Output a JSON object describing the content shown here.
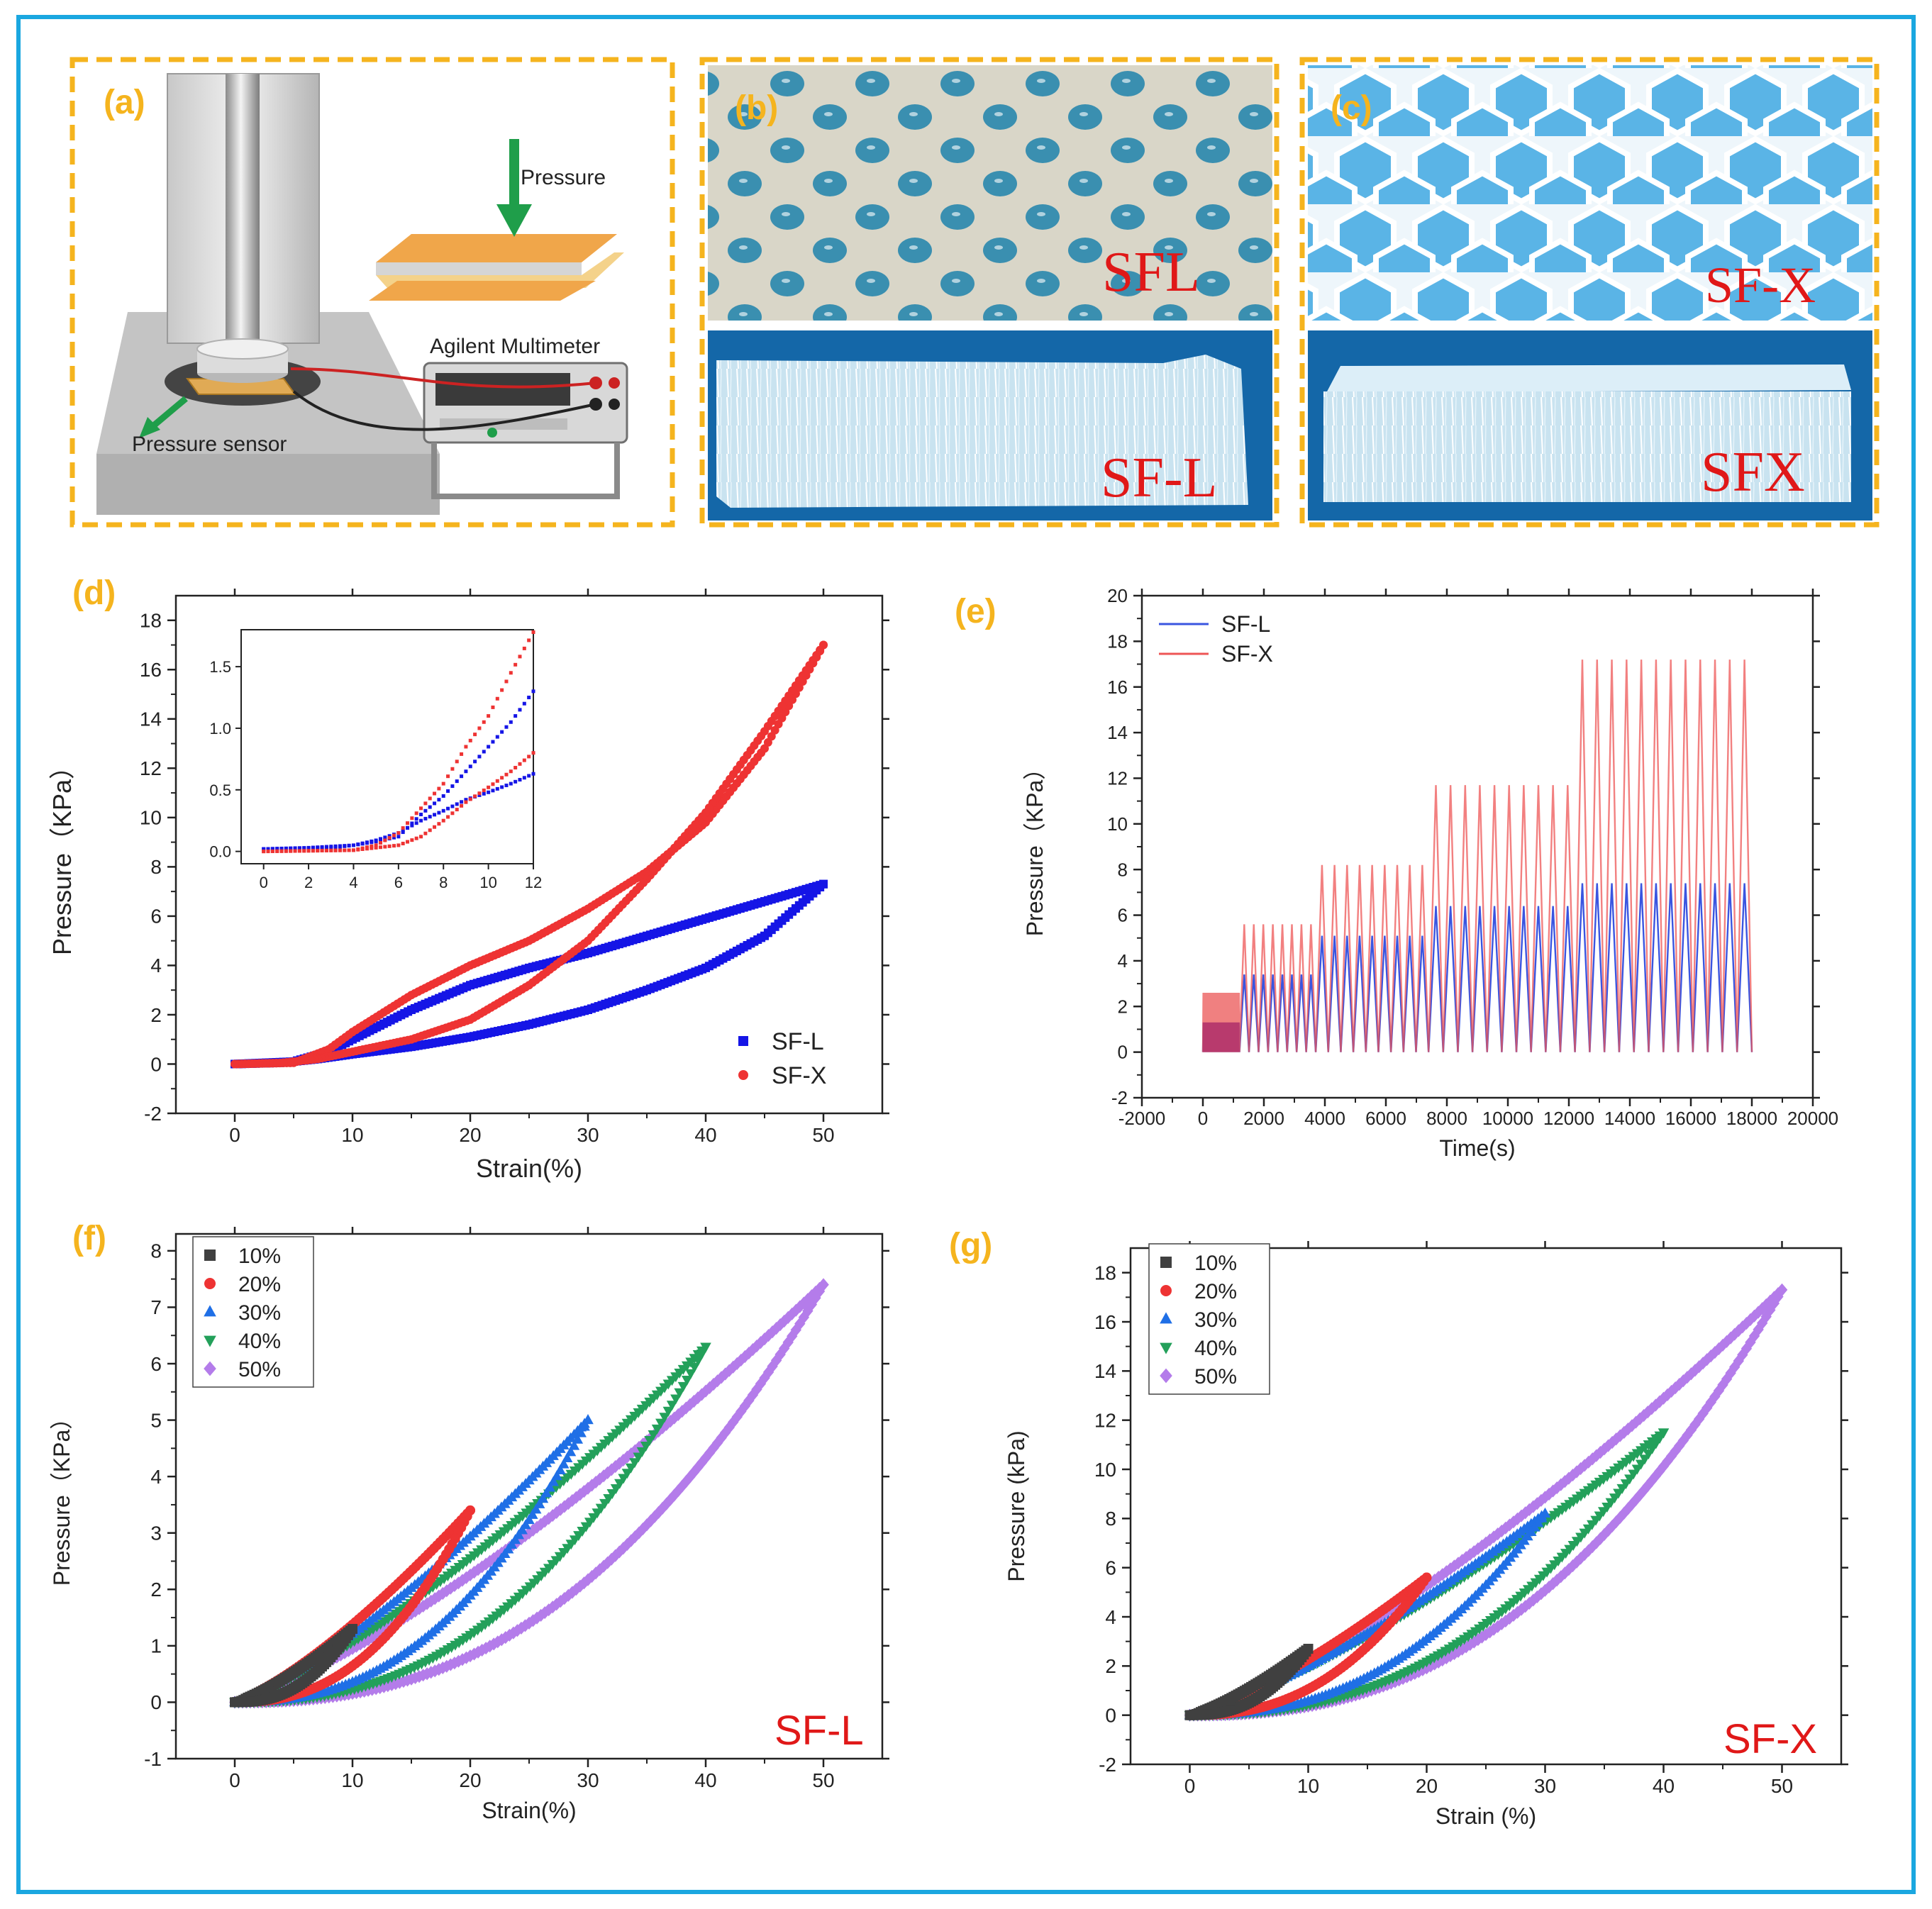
{
  "figure": {
    "colors": {
      "frame": "#1aa7e0",
      "panel_border": "#f5b41e",
      "panel_label": "#f5b41e",
      "sfl_blue": "#1515e6",
      "sfx_red": "#ee3333",
      "sample_text": "#e01818",
      "s10": "#404040",
      "s20": "#ee3333",
      "s30": "#1f6fe6",
      "s40": "#23a05a",
      "s50": "#b47cea"
    },
    "panels": {
      "a": {
        "label": "(a)",
        "pressure_text": "Pressure",
        "multimeter_text": "Agilent Multimeter",
        "sensor_text": "Pressure sensor"
      },
      "b": {
        "label": "(b)",
        "top_text": "SFL",
        "bottom_text": "SF-L"
      },
      "c": {
        "label": "(c)",
        "top_text": "SF-X",
        "bottom_text": "SFX"
      },
      "d": {
        "label": "(d)"
      },
      "e": {
        "label": "(e)"
      },
      "f": {
        "label": "(f)",
        "corner_text": "SF-L"
      },
      "g": {
        "label": "(g)",
        "corner_text": "SF-X"
      }
    }
  },
  "chart_data": [
    {
      "id": "d",
      "type": "scatter",
      "xlabel": "Strain(%)",
      "ylabel": "Pressure（KPa）",
      "xlim": [
        -5,
        55
      ],
      "ylim": [
        -2,
        19
      ],
      "xticks": [
        0,
        10,
        20,
        30,
        40,
        50
      ],
      "yticks": [
        -2,
        0,
        2,
        4,
        6,
        8,
        10,
        12,
        14,
        16,
        18
      ],
      "legend": "bottom-right",
      "series": [
        {
          "name": "SF-L",
          "color": "#1515e6",
          "marker": "square",
          "loading": [
            [
              0,
              0
            ],
            [
              5,
              0.1
            ],
            [
              8,
              0.5
            ],
            [
              10,
              1.0
            ],
            [
              15,
              2.2
            ],
            [
              20,
              3.2
            ],
            [
              25,
              3.9
            ],
            [
              30,
              4.5
            ],
            [
              35,
              5.2
            ],
            [
              40,
              5.9
            ],
            [
              45,
              6.6
            ],
            [
              50,
              7.3
            ]
          ],
          "unloading": [
            [
              50,
              7.3
            ],
            [
              45,
              5.2
            ],
            [
              40,
              3.9
            ],
            [
              35,
              3.0
            ],
            [
              30,
              2.2
            ],
            [
              25,
              1.6
            ],
            [
              20,
              1.1
            ],
            [
              15,
              0.7
            ],
            [
              10,
              0.4
            ],
            [
              7,
              0.2
            ],
            [
              4,
              0.05
            ],
            [
              0,
              0
            ]
          ]
        },
        {
          "name": "SF-X",
          "color": "#ee3333",
          "marker": "circle",
          "loading": [
            [
              0,
              0
            ],
            [
              5,
              0.05
            ],
            [
              8,
              0.6
            ],
            [
              10,
              1.3
            ],
            [
              15,
              2.8
            ],
            [
              20,
              4.0
            ],
            [
              25,
              5.0
            ],
            [
              30,
              6.3
            ],
            [
              35,
              7.8
            ],
            [
              40,
              9.8
            ],
            [
              45,
              12.8
            ],
            [
              50,
              17.0
            ]
          ],
          "unloading": [
            [
              50,
              17.0
            ],
            [
              45,
              13.5
            ],
            [
              40,
              10.2
            ],
            [
              35,
              7.5
            ],
            [
              30,
              5.0
            ],
            [
              25,
              3.2
            ],
            [
              20,
              1.8
            ],
            [
              15,
              1.0
            ],
            [
              10,
              0.5
            ],
            [
              7,
              0.2
            ],
            [
              4,
              0.05
            ],
            [
              0,
              0
            ]
          ]
        }
      ],
      "inset": {
        "xlim": [
          -1,
          12
        ],
        "ylim": [
          -0.1,
          1.8
        ],
        "xticks": [
          0,
          2,
          4,
          6,
          8,
          10,
          12
        ],
        "yticks": [
          0.0,
          0.5,
          1.0,
          1.5
        ],
        "series": [
          {
            "name": "SF-L",
            "color": "#1515e6",
            "loading": [
              [
                0,
                0.02
              ],
              [
                3,
                0.03
              ],
              [
                4,
                0.05
              ],
              [
                5,
                0.08
              ],
              [
                6,
                0.12
              ],
              [
                7,
                0.3
              ],
              [
                8,
                0.45
              ],
              [
                9,
                0.65
              ],
              [
                10,
                0.85
              ],
              [
                11,
                1.05
              ],
              [
                12,
                1.3
              ]
            ],
            "unloading": [
              [
                12,
                0.63
              ],
              [
                11,
                0.55
              ],
              [
                10,
                0.48
              ],
              [
                9,
                0.42
              ],
              [
                8,
                0.33
              ],
              [
                7,
                0.25
              ],
              [
                6,
                0.15
              ],
              [
                5,
                0.09
              ],
              [
                4,
                0.05
              ],
              [
                2,
                0.03
              ],
              [
                0,
                0.02
              ]
            ]
          },
          {
            "name": "SF-X",
            "color": "#ee3333",
            "loading": [
              [
                0,
                0
              ],
              [
                4,
                0.01
              ],
              [
                5,
                0.05
              ],
              [
                6,
                0.15
              ],
              [
                7,
                0.35
              ],
              [
                8,
                0.55
              ],
              [
                9,
                0.85
              ],
              [
                10,
                1.1
              ],
              [
                11,
                1.45
              ],
              [
                12,
                1.78
              ]
            ],
            "unloading": [
              [
                12,
                0.8
              ],
              [
                11,
                0.65
              ],
              [
                10,
                0.52
              ],
              [
                9,
                0.4
              ],
              [
                8,
                0.25
              ],
              [
                7,
                0.12
              ],
              [
                6,
                0.05
              ],
              [
                4,
                0.01
              ],
              [
                0,
                0
              ]
            ]
          }
        ]
      }
    },
    {
      "id": "e",
      "type": "line",
      "xlabel": "Time(s)",
      "ylabel": "Pressure（KPa）",
      "xlim": [
        -2000,
        20000
      ],
      "ylim": [
        -2,
        20
      ],
      "xticks": [
        -2000,
        0,
        2000,
        4000,
        6000,
        8000,
        10000,
        12000,
        14000,
        16000,
        18000,
        20000
      ],
      "yticks": [
        -2,
        0,
        2,
        4,
        6,
        8,
        10,
        12,
        14,
        16,
        18,
        20
      ],
      "legend": "top-left",
      "stages": [
        {
          "start": 0,
          "end": 1200,
          "cycles": 10,
          "sfl_peak": 1.3,
          "sfx_peak": 2.6
        },
        {
          "start": 1200,
          "end": 3700,
          "cycles": 8,
          "sfl_peak": 3.4,
          "sfx_peak": 5.6
        },
        {
          "start": 3700,
          "end": 7400,
          "cycles": 9,
          "sfl_peak": 5.1,
          "sfx_peak": 8.2
        },
        {
          "start": 7400,
          "end": 12200,
          "cycles": 10,
          "sfl_peak": 6.4,
          "sfx_peak": 11.7
        },
        {
          "start": 12200,
          "end": 18000,
          "cycles": 12,
          "sfl_peak": 7.4,
          "sfx_peak": 17.2
        }
      ],
      "series": [
        {
          "name": "SF-L",
          "color": "#3a55e0"
        },
        {
          "name": "SF-X",
          "color": "#ee5555"
        }
      ]
    },
    {
      "id": "f",
      "type": "scatter",
      "xlabel": "Strain(%)",
      "ylabel": "Pressure（KPa）",
      "xlim": [
        -5,
        55
      ],
      "ylim": [
        -1,
        8.3
      ],
      "xticks": [
        0,
        10,
        20,
        30,
        40,
        50
      ],
      "yticks": [
        -1,
        0,
        1,
        2,
        3,
        4,
        5,
        6,
        7,
        8
      ],
      "legend": "top-left",
      "series": [
        {
          "name": "10%",
          "color": "#404040",
          "marker": "square",
          "max_strain": 10,
          "peak": 1.3
        },
        {
          "name": "20%",
          "color": "#ee3333",
          "marker": "circle",
          "max_strain": 20,
          "peak": 3.4
        },
        {
          "name": "30%",
          "color": "#1f6fe6",
          "marker": "triangle-up",
          "max_strain": 30,
          "peak": 5.0
        },
        {
          "name": "40%",
          "color": "#23a05a",
          "marker": "triangle-down",
          "max_strain": 40,
          "peak": 6.3
        },
        {
          "name": "50%",
          "color": "#b47cea",
          "marker": "diamond",
          "max_strain": 50,
          "peak": 7.4
        }
      ]
    },
    {
      "id": "g",
      "type": "scatter",
      "xlabel": "Strain (%)",
      "ylabel": "Pressure (kPa)",
      "xlim": [
        -5,
        55
      ],
      "ylim": [
        -2,
        19
      ],
      "xticks": [
        0,
        10,
        20,
        30,
        40,
        50
      ],
      "yticks": [
        -2,
        0,
        2,
        4,
        6,
        8,
        10,
        12,
        14,
        16,
        18
      ],
      "legend": "top-left",
      "series": [
        {
          "name": "10%",
          "color": "#404040",
          "marker": "square",
          "max_strain": 10,
          "peak": 2.7
        },
        {
          "name": "20%",
          "color": "#ee3333",
          "marker": "circle",
          "max_strain": 20,
          "peak": 5.6
        },
        {
          "name": "30%",
          "color": "#1f6fe6",
          "marker": "triangle-up",
          "max_strain": 30,
          "peak": 8.2
        },
        {
          "name": "40%",
          "color": "#23a05a",
          "marker": "triangle-down",
          "max_strain": 40,
          "peak": 11.5
        },
        {
          "name": "50%",
          "color": "#b47cea",
          "marker": "diamond",
          "max_strain": 50,
          "peak": 17.3
        }
      ]
    }
  ]
}
